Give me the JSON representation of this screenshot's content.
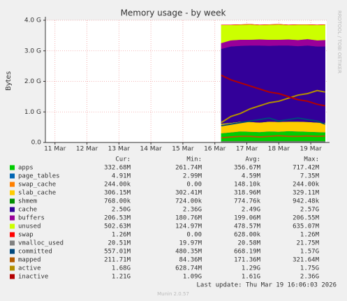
{
  "chart_data": {
    "type": "area",
    "title": "Memory usage - by week",
    "y_label": "Bytes",
    "side_text": "RRDTOOL / TOBI OETIKER",
    "footer": "Last update: Thu Mar 19 16:06:03 2026",
    "version": "Munin 2.0.57",
    "grid": true,
    "xlim": [
      10.7,
      19.5
    ],
    "xticks": [
      {
        "value": 11,
        "label": "11 Mar"
      },
      {
        "value": 12,
        "label": "12 Mar"
      },
      {
        "value": 13,
        "label": "13 Mar"
      },
      {
        "value": 14,
        "label": "14 Mar"
      },
      {
        "value": 15,
        "label": "15 Mar"
      },
      {
        "value": 16,
        "label": "16 Mar"
      },
      {
        "value": 17,
        "label": "17 Mar"
      },
      {
        "value": 18,
        "label": "18 Mar"
      },
      {
        "value": 19,
        "label": "19 Mar"
      }
    ],
    "ylim": [
      0,
      4
    ],
    "yticks": [
      {
        "value": 0,
        "label": "0.0"
      },
      {
        "value": 1,
        "label": "1.0 G"
      },
      {
        "value": 2,
        "label": "2.0 G"
      },
      {
        "value": 3,
        "label": "3.0 G"
      },
      {
        "value": 4,
        "label": "4.0 G"
      }
    ],
    "x": [
      16.2,
      16.5,
      16.8,
      17.1,
      17.4,
      17.7,
      18.0,
      18.3,
      18.6,
      18.9,
      19.2,
      19.45
    ],
    "legend_headers": [
      "Cur:",
      "Min:",
      "Avg:",
      "Max:"
    ],
    "series": [
      {
        "name": "apps",
        "color": "#00cc00",
        "style": "area",
        "values": [
          0.3,
          0.33,
          0.36,
          0.35,
          0.34,
          0.36,
          0.35,
          0.37,
          0.36,
          0.35,
          0.34,
          0.33
        ],
        "stats": [
          "332.68M",
          "261.74M",
          "356.67M",
          "717.42M"
        ]
      },
      {
        "name": "page_tables",
        "color": "#0066b3",
        "style": "area",
        "values": [
          0.005,
          0.005,
          0.005,
          0.005,
          0.005,
          0.005,
          0.005,
          0.005,
          0.005,
          0.005,
          0.005,
          0.005
        ],
        "stats": [
          "4.91M",
          "2.99M",
          "4.59M",
          "7.35M"
        ]
      },
      {
        "name": "swap_cache",
        "color": "#ff8000",
        "style": "area",
        "values": [
          0.0002,
          0.0002,
          0.0002,
          0.0002,
          0.0002,
          0.0002,
          0.0002,
          0.0002,
          0.0002,
          0.0002,
          0.0002,
          0.0002
        ],
        "stats": [
          "244.00k",
          "0.00",
          "148.10k",
          "244.00k"
        ]
      },
      {
        "name": "slab_cache",
        "color": "#ffcc00",
        "style": "area",
        "values": [
          0.31,
          0.31,
          0.32,
          0.32,
          0.31,
          0.32,
          0.32,
          0.31,
          0.32,
          0.32,
          0.31,
          0.31
        ],
        "stats": [
          "306.15M",
          "302.41M",
          "318.96M",
          "329.11M"
        ]
      },
      {
        "name": "shmem",
        "color": "#008f00",
        "style": "area",
        "values": [
          0.0008,
          0.0008,
          0.0008,
          0.0008,
          0.0008,
          0.0008,
          0.0008,
          0.0008,
          0.0008,
          0.0008,
          0.0008,
          0.0008
        ],
        "stats": [
          "768.00k",
          "724.00k",
          "774.76k",
          "942.48k"
        ]
      },
      {
        "name": "cache",
        "color": "#330099",
        "style": "area",
        "values": [
          2.45,
          2.5,
          2.48,
          2.5,
          2.52,
          2.48,
          2.5,
          2.49,
          2.47,
          2.5,
          2.49,
          2.5
        ],
        "stats": [
          "2.50G",
          "2.36G",
          "2.49G",
          "2.57G"
        ]
      },
      {
        "name": "buffers",
        "color": "#990099",
        "style": "area",
        "values": [
          0.19,
          0.2,
          0.2,
          0.19,
          0.2,
          0.2,
          0.19,
          0.2,
          0.2,
          0.21,
          0.2,
          0.21
        ],
        "stats": [
          "206.53M",
          "180.76M",
          "199.06M",
          "206.55M"
        ]
      },
      {
        "name": "unused",
        "color": "#ccff00",
        "style": "area",
        "values": [
          0.59,
          0.5,
          0.49,
          0.5,
          0.47,
          0.49,
          0.5,
          0.47,
          0.5,
          0.47,
          0.5,
          0.5
        ],
        "stats": [
          "502.63M",
          "124.97M",
          "478.57M",
          "635.07M"
        ]
      },
      {
        "name": "swap",
        "color": "#ff0000",
        "style": "area",
        "values": [
          0.0013,
          0.0013,
          0.0013,
          0.0013,
          0.0013,
          0.0013,
          0.0013,
          0.0013,
          0.0013,
          0.0013,
          0.0013,
          0.0013
        ],
        "stats": [
          "1.26M",
          "0.00",
          "628.00k",
          "1.26M"
        ]
      },
      {
        "name": "vmalloc_used",
        "color": "#808080",
        "style": "line",
        "values": [
          0.02,
          0.02,
          0.02,
          0.02,
          0.02,
          0.02,
          0.02,
          0.02,
          0.02,
          0.02,
          0.02,
          0.02
        ],
        "stats": [
          "20.51M",
          "19.97M",
          "20.58M",
          "21.75M"
        ]
      },
      {
        "name": "committed",
        "color": "#00487d",
        "style": "line",
        "values": [
          0.55,
          0.6,
          0.65,
          0.7,
          0.75,
          0.8,
          0.7,
          0.75,
          0.8,
          0.75,
          0.7,
          0.6
        ],
        "stats": [
          "557.01M",
          "480.35M",
          "668.19M",
          "1.57G"
        ]
      },
      {
        "name": "mapped",
        "color": "#b35a00",
        "style": "line",
        "values": [
          0.15,
          0.18,
          0.2,
          0.2,
          0.18,
          0.2,
          0.22,
          0.2,
          0.2,
          0.21,
          0.2,
          0.21
        ],
        "stats": [
          "211.71M",
          "84.36M",
          "171.36M",
          "321.64M"
        ]
      },
      {
        "name": "active",
        "color": "#b38f00",
        "style": "line",
        "values": [
          0.65,
          0.85,
          0.95,
          1.1,
          1.2,
          1.3,
          1.35,
          1.45,
          1.55,
          1.6,
          1.7,
          1.65
        ],
        "stats": [
          "1.68G",
          "628.74M",
          "1.29G",
          "1.75G"
        ]
      },
      {
        "name": "inactive",
        "color": "#b30000",
        "style": "line",
        "values": [
          2.2,
          2.05,
          1.95,
          1.85,
          1.75,
          1.65,
          1.6,
          1.5,
          1.4,
          1.35,
          1.25,
          1.2
        ],
        "stats": [
          "1.21G",
          "1.09G",
          "1.61G",
          "2.36G"
        ]
      }
    ]
  }
}
